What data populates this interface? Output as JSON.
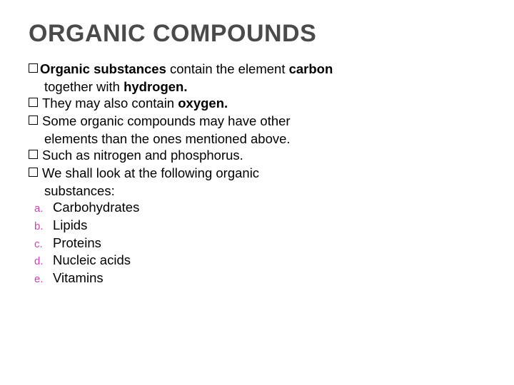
{
  "title": "ORGANIC COMPOUNDS",
  "title_color": "#4a4a4a",
  "title_fontsize": 34,
  "body_fontsize": 18.5,
  "marker_color": "#d63fb3",
  "background_color": "#ffffff",
  "bullets": [
    {
      "pre_bold": "Organic ",
      "mid": "substances",
      "after1": " contain the element ",
      "bold2": "carbon",
      "cont_plain": "together with ",
      "cont_bold": "hydrogen."
    },
    {
      "plain1": "They may also contain ",
      "bold1": "oxygen."
    },
    {
      "plain1": "Some organic compounds may have other",
      "cont": "elements than the ones mentioned above."
    },
    {
      "plain1": "Such as nitrogen and phosphorus."
    },
    {
      "plain1": "We shall look at the following organic",
      "cont": "substances:"
    }
  ],
  "sublist": [
    {
      "marker": "a.",
      "label": "Carbohydrates"
    },
    {
      "marker": "b.",
      "label": "Lipids"
    },
    {
      "marker": "c.",
      "label": "Proteins"
    },
    {
      "marker": "d.",
      "label": "Nucleic acids"
    },
    {
      "marker": "e.",
      "label": "Vitamins"
    }
  ]
}
